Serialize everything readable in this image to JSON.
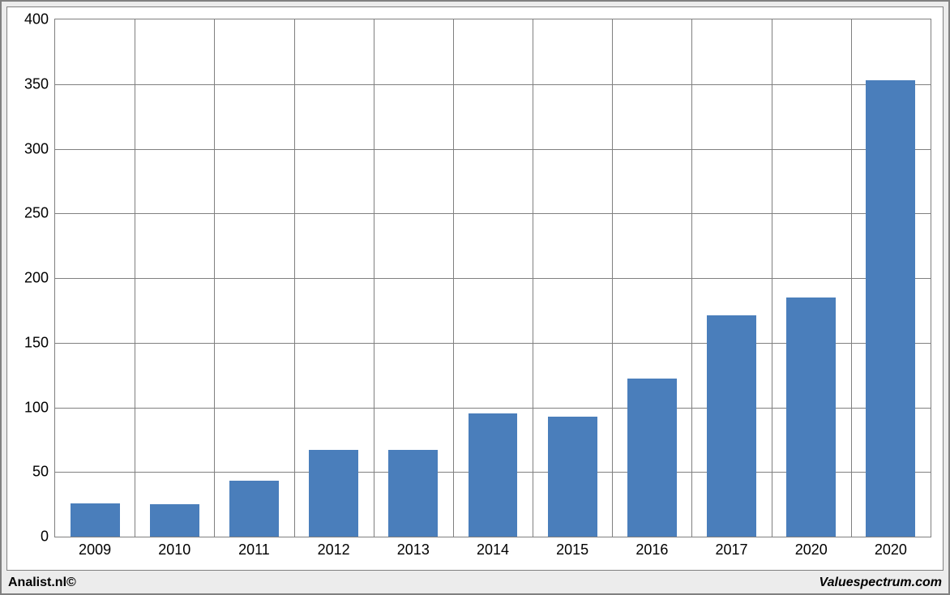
{
  "chart": {
    "type": "bar",
    "categories": [
      "2009",
      "2010",
      "2011",
      "2012",
      "2013",
      "2014",
      "2015",
      "2016",
      "2017",
      "2020",
      "2020"
    ],
    "values": [
      26,
      25,
      43,
      67,
      67,
      95,
      93,
      122,
      171,
      185,
      353
    ],
    "bar_color": "#4a7ebb",
    "bar_width_ratio": 0.62,
    "ylim": [
      0,
      400
    ],
    "ytick_step": 50,
    "yticks": [
      0,
      50,
      100,
      150,
      200,
      250,
      300,
      350,
      400
    ],
    "background_color": "#ffffff",
    "panel_bg": "#ececec",
    "grid_color": "#808080",
    "border_color": "#808080",
    "label_fontsize": 18,
    "label_color": "#000000"
  },
  "footer": {
    "left": "Analist.nl©",
    "right": "Valuespectrum.com"
  }
}
